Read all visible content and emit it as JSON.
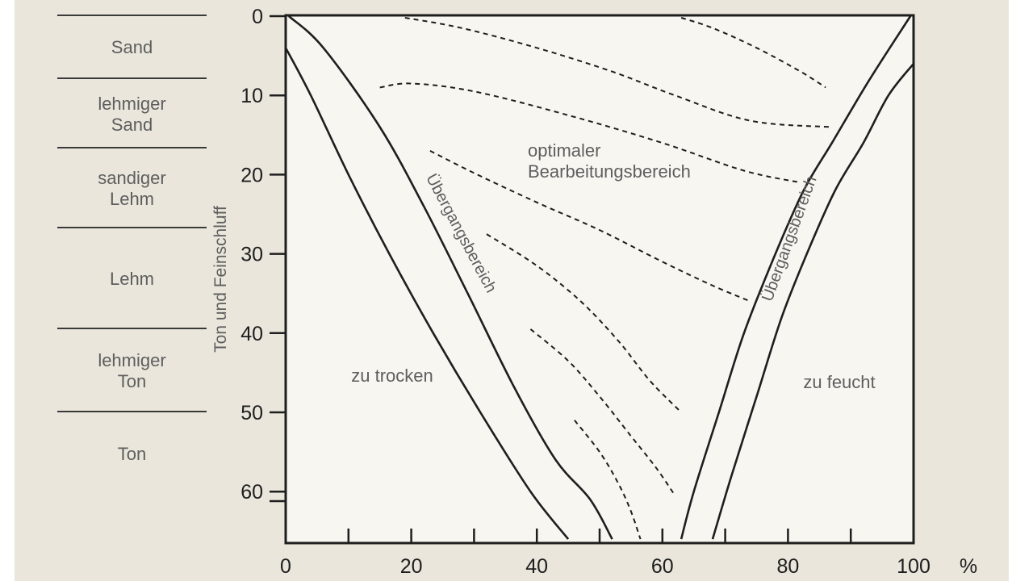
{
  "soil_classes": [
    {
      "label": "Sand"
    },
    {
      "label": "lehmiger\nSand"
    },
    {
      "label": "sandiger\nLehm"
    },
    {
      "label": "Lehm"
    },
    {
      "label": "lehmiger\nTon"
    },
    {
      "label": "Ton"
    }
  ],
  "chart_data": {
    "type": "line",
    "title": "",
    "xlabel": "%",
    "ylabel": "Ton und Feinschluff",
    "xlim": [
      0,
      100
    ],
    "ylim": [
      0,
      66
    ],
    "y_inverted": true,
    "x_ticks": [
      "0",
      "20",
      "40",
      "60",
      "80",
      "100"
    ],
    "y_ticks": [
      "0",
      "10",
      "20",
      "30",
      "40",
      "50",
      "60"
    ],
    "grid": false,
    "boundaries": [
      {
        "points": [
          [
            0,
            4
          ],
          [
            4,
            10
          ],
          [
            10,
            20
          ],
          [
            16.5,
            30
          ],
          [
            23.5,
            40
          ],
          [
            31,
            50
          ],
          [
            39,
            60
          ],
          [
            45,
            66
          ]
        ]
      },
      {
        "points": [
          [
            0.5,
            0
          ],
          [
            6,
            4
          ],
          [
            15,
            14
          ],
          [
            22,
            24
          ],
          [
            29,
            35
          ],
          [
            36.5,
            47
          ],
          [
            43,
            56
          ],
          [
            48.5,
            61
          ],
          [
            52,
            66
          ]
        ]
      },
      {
        "points": [
          [
            63,
            66
          ],
          [
            65,
            60
          ],
          [
            69,
            50
          ],
          [
            73,
            40
          ],
          [
            78,
            30
          ],
          [
            82.5,
            22
          ],
          [
            87,
            16
          ],
          [
            93,
            8
          ],
          [
            99.5,
            0
          ]
        ]
      },
      {
        "points": [
          [
            68,
            66
          ],
          [
            71,
            58
          ],
          [
            75,
            48
          ],
          [
            79,
            38
          ],
          [
            83,
            30
          ],
          [
            87.5,
            22
          ],
          [
            92,
            16
          ],
          [
            96,
            10
          ],
          [
            100,
            6
          ]
        ]
      }
    ],
    "dashed_lines": [
      {
        "points": [
          [
            19,
            0.2
          ],
          [
            28,
            1.5
          ],
          [
            40,
            4
          ],
          [
            52,
            7
          ],
          [
            62,
            10
          ],
          [
            74,
            13.2
          ],
          [
            87,
            14
          ]
        ]
      },
      {
        "points": [
          [
            63,
            0.2
          ],
          [
            68,
            1.5
          ],
          [
            75,
            4
          ],
          [
            82,
            7
          ],
          [
            86,
            9
          ]
        ]
      },
      {
        "points": [
          [
            15,
            9
          ],
          [
            20,
            8.5
          ],
          [
            30,
            9.5
          ],
          [
            45,
            12.5
          ],
          [
            60,
            16
          ],
          [
            73,
            19.5
          ],
          [
            82,
            21
          ]
        ]
      },
      {
        "points": [
          [
            23,
            17
          ],
          [
            30,
            19.8
          ],
          [
            40,
            23.5
          ],
          [
            50,
            27
          ],
          [
            60,
            31
          ],
          [
            68,
            34
          ],
          [
            74,
            36
          ]
        ]
      },
      {
        "points": [
          [
            32,
            27.5
          ],
          [
            40,
            31.5
          ],
          [
            47,
            36
          ],
          [
            53,
            41
          ],
          [
            58,
            46
          ],
          [
            63,
            50
          ]
        ]
      },
      {
        "points": [
          [
            39,
            39.5
          ],
          [
            45,
            43.5
          ],
          [
            50,
            48
          ],
          [
            55,
            53
          ],
          [
            59,
            57
          ],
          [
            62,
            60.5
          ]
        ]
      },
      {
        "points": [
          [
            46,
            51
          ],
          [
            50,
            55
          ],
          [
            53,
            59
          ],
          [
            55,
            62.5
          ],
          [
            56.5,
            66
          ]
        ]
      }
    ],
    "annotations": {
      "dry": "zu trocken",
      "optimal_line1": "optimaler",
      "optimal_line2": "Bearbeitungsbereich",
      "transition_left": "Übergangsbereich",
      "transition_right": "Übergangsbereich",
      "wet": "zu feucht"
    },
    "colors": {
      "background": "#eae6dc",
      "plot_fill": "#f8f6f1",
      "ink": "#1e1e1e",
      "label_text": "#5e5e5e"
    }
  }
}
